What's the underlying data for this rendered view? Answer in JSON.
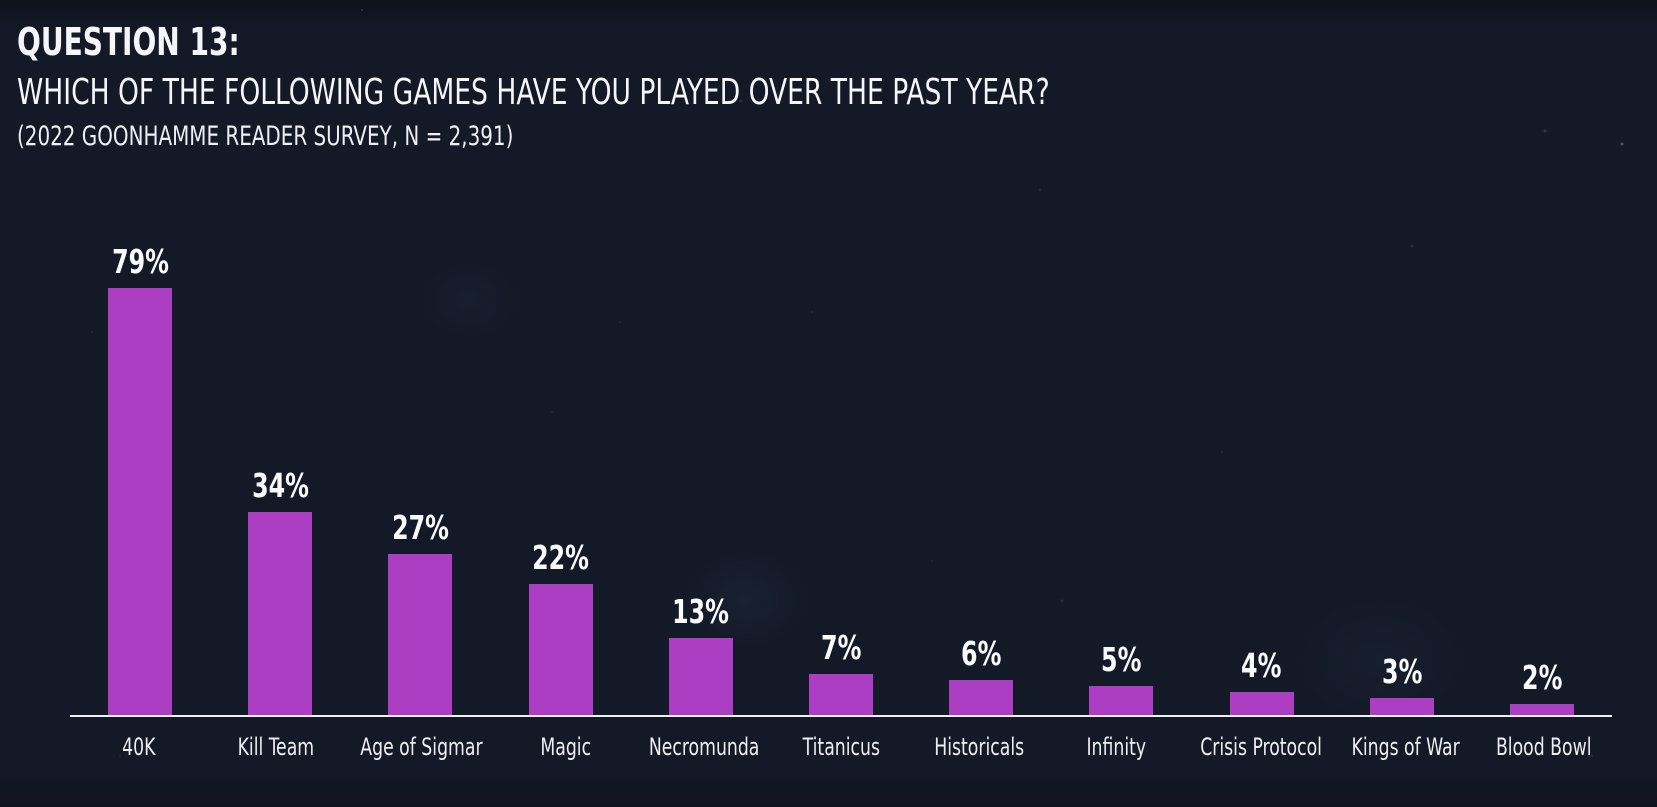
{
  "header": {
    "line1": "QUESTION 13:",
    "line2": "WHICH OF THE FOLLOWING GAMES HAVE YOU PLAYED OVER THE PAST YEAR?",
    "line3": "(2022 GOONHAMME READER SURVEY, N = 2,391)"
  },
  "colors": {
    "background": "#131927",
    "bar": "#ab3ec2",
    "axis": "#eef0f3",
    "text": "#f4f6f9"
  },
  "chart_data": {
    "type": "bar",
    "title": "QUESTION 13: WHICH OF THE FOLLOWING GAMES HAVE YOU PLAYED OVER THE PAST YEAR?",
    "subtitle": "(2022 GOONHAMME READER SURVEY, N = 2,391)",
    "categories": [
      "40K",
      "Kill Team",
      "Age of Sigmar",
      "Magic",
      "Necromunda",
      "Titanicus",
      "Historicals",
      "Infinity",
      "Crisis Protocol",
      "Kings of War",
      "Blood Bowl"
    ],
    "values": [
      79,
      34,
      27,
      22,
      13,
      7,
      6,
      5,
      4,
      3,
      2
    ],
    "value_labels": [
      "79%",
      "34%",
      "27%",
      "22%",
      "13%",
      "7%",
      "6%",
      "5%",
      "4%",
      "3%",
      "2%"
    ],
    "xlabel": "",
    "ylabel": "",
    "ylim": [
      0,
      80
    ],
    "grid": false,
    "legend": null,
    "bar_color": "#ab3ec2",
    "orientation": "vertical"
  }
}
